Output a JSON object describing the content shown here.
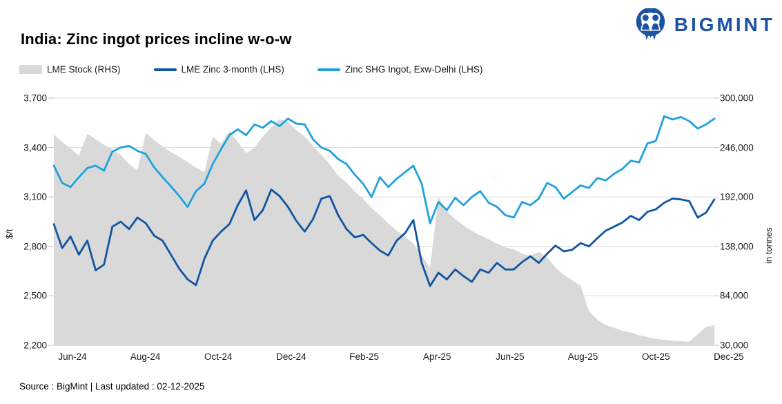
{
  "header": {
    "title": "India: Zinc ingot prices incline w-o-w",
    "brand": "BIGMINT"
  },
  "legend": [
    {
      "label": "LME Stock (RHS)",
      "type": "area",
      "color": "#D9D9D9"
    },
    {
      "label": "LME  Zinc  3-month (LHS)",
      "type": "line",
      "color": "#10559F"
    },
    {
      "label": "Zinc SHG Ingot, Exw-Delhi (LHS)",
      "type": "line",
      "color": "#1EA2DC"
    }
  ],
  "chart_data": {
    "type": "line",
    "title": "India: Zinc ingot prices incline w-o-w",
    "x_ticks": [
      "Jun-24",
      "Aug-24",
      "Oct-24",
      "Dec-24",
      "Feb-25",
      "Apr-25",
      "Jun-25",
      "Aug-25",
      "Oct-25",
      "Dec-25"
    ],
    "left_axis": {
      "label": "$/t",
      "min": 2200,
      "max": 3700,
      "tick_values": [
        2200,
        2500,
        2800,
        3100,
        3400,
        3700
      ],
      "ticks": [
        "2,200",
        "2,500",
        "2,800",
        "3,100",
        "3,400",
        "3,700"
      ]
    },
    "right_axis": {
      "label": "in tonnes",
      "min": 30000,
      "max": 300000,
      "tick_values": [
        30000,
        84000,
        138000,
        192000,
        246000,
        300000
      ],
      "ticks": [
        "30,000",
        "84,000",
        "138,000",
        "192,000",
        "246,000",
        "300,000"
      ]
    },
    "grid": true,
    "legend_position": "top",
    "series": [
      {
        "name": "LME Stock (RHS)",
        "type": "area",
        "axis": "right",
        "color": "#D9D9D9",
        "values": [
          260000,
          252000,
          245000,
          237000,
          261000,
          255000,
          249000,
          244000,
          238000,
          228000,
          221000,
          262000,
          254000,
          247000,
          241000,
          236000,
          230000,
          224000,
          219000,
          258000,
          250000,
          264000,
          252000,
          240000,
          246000,
          258000,
          268000,
          277000,
          274000,
          265000,
          258000,
          248000,
          238000,
          228000,
          215000,
          208000,
          198000,
          190000,
          180000,
          172000,
          163000,
          155000,
          149000,
          141000,
          128000,
          115000,
          192000,
          176000,
          168000,
          161000,
          155000,
          150000,
          146000,
          141000,
          137000,
          135000,
          130000,
          128000,
          132000,
          126000,
          115000,
          107000,
          101000,
          95000,
          67000,
          58000,
          52000,
          49000,
          46000,
          44000,
          41000,
          39000,
          37000,
          36000,
          35000,
          34500,
          34000,
          42000,
          50000,
          52000
        ]
      },
      {
        "name": "LME  Zinc  3-month (LHS)",
        "type": "line",
        "axis": "left",
        "color": "#10559F",
        "values": [
          2935,
          2790,
          2860,
          2750,
          2835,
          2655,
          2690,
          2920,
          2950,
          2905,
          2975,
          2940,
          2865,
          2835,
          2750,
          2665,
          2600,
          2565,
          2725,
          2835,
          2890,
          2935,
          3050,
          3140,
          2960,
          3020,
          3145,
          3105,
          3040,
          2955,
          2890,
          2965,
          3090,
          3105,
          2990,
          2905,
          2855,
          2870,
          2820,
          2775,
          2745,
          2835,
          2880,
          2960,
          2700,
          2560,
          2640,
          2600,
          2660,
          2620,
          2585,
          2660,
          2640,
          2700,
          2660,
          2660,
          2705,
          2740,
          2700,
          2755,
          2805,
          2770,
          2780,
          2820,
          2800,
          2850,
          2895,
          2920,
          2945,
          2985,
          2960,
          3010,
          3025,
          3065,
          3090,
          3085,
          3075,
          2975,
          3005,
          3085
        ]
      },
      {
        "name": "Zinc SHG Ingot, Exw-Delhi (LHS)",
        "type": "line",
        "axis": "left",
        "color": "#1EA2DC",
        "values": [
          3290,
          3185,
          3160,
          3220,
          3275,
          3290,
          3260,
          3375,
          3400,
          3410,
          3380,
          3360,
          3280,
          3220,
          3165,
          3105,
          3040,
          3135,
          3180,
          3300,
          3390,
          3475,
          3510,
          3475,
          3540,
          3520,
          3560,
          3530,
          3575,
          3545,
          3540,
          3450,
          3400,
          3380,
          3330,
          3300,
          3235,
          3180,
          3100,
          3220,
          3160,
          3210,
          3250,
          3290,
          3180,
          2940,
          3070,
          3020,
          3095,
          3050,
          3100,
          3135,
          3065,
          3040,
          2990,
          2975,
          3070,
          3050,
          3090,
          3185,
          3160,
          3090,
          3130,
          3170,
          3155,
          3215,
          3200,
          3240,
          3270,
          3320,
          3310,
          3425,
          3440,
          3590,
          3570,
          3585,
          3560,
          3515,
          3540,
          3575
        ]
      }
    ]
  },
  "footer": {
    "source": "Source : BigMint | Last updated : 02-12-2025"
  }
}
